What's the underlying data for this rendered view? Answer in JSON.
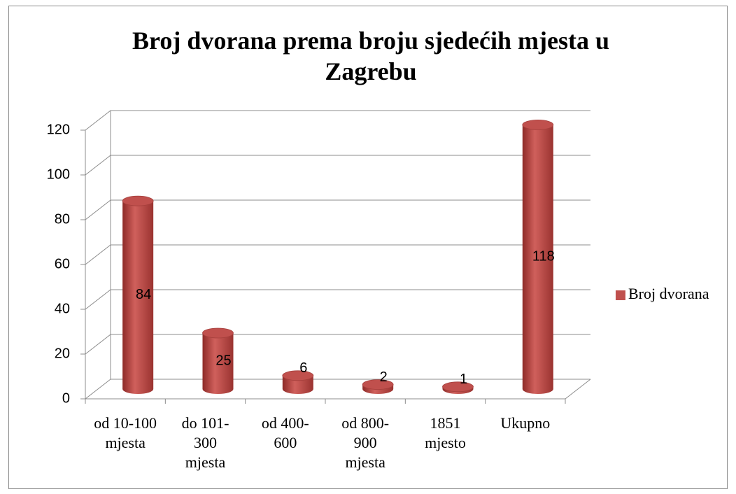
{
  "chart_data": {
    "type": "bar3d",
    "title": "Broj dvorana prema broju sjedećih mjesta u Zagrebu",
    "categories": [
      "od 10-100 mjesta",
      "do 101-300 mjesta",
      "od 400-600",
      "od 800-900 mjesta",
      "1851 mjesto",
      "Ukupno"
    ],
    "series": [
      {
        "name": "Broj dvorana",
        "color": "#c0504d",
        "values": [
          84,
          25,
          6,
          2,
          1,
          118
        ]
      }
    ],
    "ylim": [
      0,
      120
    ],
    "yticks": [
      0,
      20,
      40,
      60,
      80,
      100,
      120
    ],
    "grid": true,
    "legend": "right"
  }
}
